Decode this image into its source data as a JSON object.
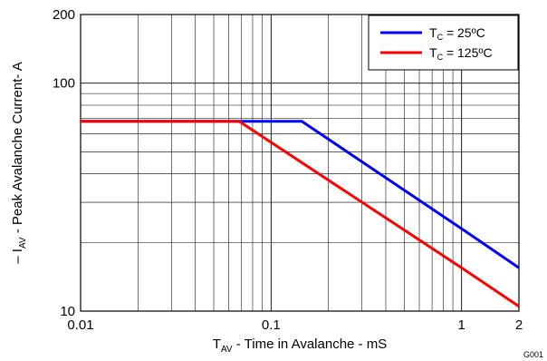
{
  "chart_data": {
    "type": "line",
    "x_scale": "log",
    "y_scale": "log",
    "xlim": [
      0.01,
      2
    ],
    "ylim": [
      10,
      200
    ],
    "grid": true,
    "x_ticks": [
      {
        "value": 0.01,
        "label": "0.01"
      },
      {
        "value": 0.1,
        "label": "0.1"
      },
      {
        "value": 1,
        "label": "1"
      },
      {
        "value": 2,
        "label": "2"
      }
    ],
    "y_ticks": [
      {
        "value": 10,
        "label": "10"
      },
      {
        "value": 100,
        "label": "100"
      },
      {
        "value": 200,
        "label": "200"
      }
    ],
    "xlabel": {
      "main": "T",
      "sub": "AV",
      "rest": " - Time in Avalanche - mS"
    },
    "ylabel": {
      "main": "– I",
      "sub": "AV",
      "rest": " - Peak Avalanche Current- A"
    },
    "figure_id": "G001",
    "legend_position": "top-right",
    "series": [
      {
        "name": {
          "main": "T",
          "sub": "C",
          "rest": " = 25ºC"
        },
        "color": "#0000ff",
        "points": [
          [
            0.01,
            68
          ],
          [
            0.145,
            68
          ],
          [
            1,
            23
          ],
          [
            2,
            15.5
          ]
        ]
      },
      {
        "name": {
          "main": "T",
          "sub": "C",
          "rest": " = 125ºC"
        },
        "color": "#ff0000",
        "points": [
          [
            0.01,
            68
          ],
          [
            0.068,
            68
          ],
          [
            1,
            15.5
          ],
          [
            2,
            10.5
          ]
        ]
      }
    ]
  }
}
